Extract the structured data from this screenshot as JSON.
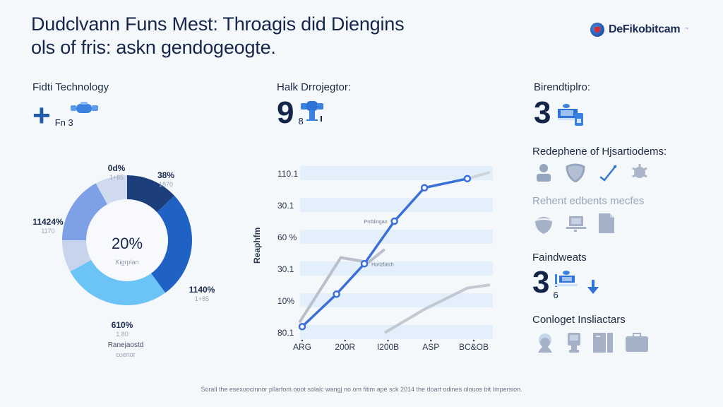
{
  "header": {
    "title_line1": "Dudclvann Funs Mest: Throagis did Diengins",
    "title_line2": "ols of fris: askn gendogeogte."
  },
  "logo": {
    "icon": "globe-icon",
    "text": "DeFikobitcam",
    "tm": "™"
  },
  "kpis": [
    {
      "label": "Fidti Technology",
      "value": "+",
      "value_icon": "plus-icon",
      "sub": "Fn 3",
      "icon": "blue-device-icon"
    },
    {
      "label": "Halk Drrojegtor:",
      "value": "9",
      "sub": "8",
      "icon": "blue-robot-icon"
    },
    {
      "label": "Birendtiplro:",
      "value": "3",
      "icon": "blue-terminal-icon"
    }
  ],
  "right_panel": {
    "section1_label": "Redephene of Hjsartiodems:",
    "section1_icons": [
      "user-icon",
      "shield-icon",
      "checkmark-icon",
      "gear-bug-icon"
    ],
    "section2_label": "Rehent edbents mecfes",
    "section2_icons": [
      "helmet-icon",
      "laptop-icon",
      "document-icon"
    ],
    "section3_label": "Faindweats",
    "section3_value": "3",
    "section3_sub": "6",
    "section3_icons": [
      "blue-terminal-icon",
      "arrow-down-icon"
    ],
    "section4_label": "Conloget Insliactars",
    "section4_icons": [
      "face-icon",
      "kiosk-icon",
      "wardrobe-icon",
      "suitcase-icon"
    ]
  },
  "footer": {
    "text": "Sorall the esexuocinnor pllarfom ooot solalc wangj no om fitim ape sck 2014 the doart odines olouos bit Impersion."
  },
  "chart_data": [
    {
      "type": "pie",
      "title": "",
      "center_value": "20%",
      "center_label": "Kigrplan",
      "caption": "Ranejaostd",
      "caption_sub": "coenor",
      "slices": [
        {
          "label": "38%",
          "sub": "1870",
          "share": 0.13,
          "color": "#1c3f7c"
        },
        {
          "label": "1140%",
          "sub": "1+85",
          "share": 0.27,
          "color": "#1f62c3"
        },
        {
          "label": "610%",
          "sub": "1.80",
          "share": 0.27,
          "color": "#6bc3f6"
        },
        {
          "label": "",
          "sub": "",
          "share": 0.08,
          "color": "#c7d4ec"
        },
        {
          "label": "11424%",
          "sub": "1170",
          "share": 0.17,
          "color": "#7ea0e6"
        },
        {
          "label": "0d%",
          "sub": "1+85",
          "share": 0.08,
          "color": "#d0dbf0"
        }
      ]
    },
    {
      "type": "line",
      "title": "",
      "xlabel": "",
      "ylabel": "Reaphfm",
      "categories": [
        "ARG",
        "200R",
        "I200B",
        "ASP",
        "BC&OB"
      ],
      "y_tick_labels": [
        "110.1",
        "30.1",
        "60 %",
        "30.1",
        "10%",
        "80.1"
      ],
      "ylim": [
        0,
        5
      ],
      "grid": "horizontal bands",
      "annotations": [
        {
          "text": "Prcblingan",
          "at_point": 3
        },
        {
          "text": "Horizfatch",
          "at_point": 2
        }
      ],
      "series": [
        {
          "name": "primary",
          "color": "#3a6fd8",
          "markers": true,
          "points": [
            [
              0,
              0.18
            ],
            [
              0.8,
              1.25
            ],
            [
              1.45,
              2.25
            ],
            [
              2.15,
              3.65
            ],
            [
              2.85,
              4.75
            ],
            [
              3.85,
              5.05
            ]
          ]
        },
        {
          "name": "secondary",
          "color": "#b9c0cb",
          "markers": false,
          "points": [
            [
              -0.05,
              0.35
            ],
            [
              0.9,
              2.45
            ],
            [
              1.55,
              2.3
            ],
            [
              1.9,
              2.7
            ]
          ]
        },
        {
          "name": "tertiary",
          "color": "#c3c9d2",
          "markers": false,
          "points": [
            [
              1.95,
              0.0
            ],
            [
              2.85,
              0.75
            ],
            [
              3.85,
              1.45
            ],
            [
              4.35,
              1.55
            ]
          ]
        },
        {
          "name": "extension",
          "color": "#cfd4db",
          "markers": false,
          "points": [
            [
              3.85,
              5.05
            ],
            [
              4.35,
              5.25
            ]
          ]
        }
      ]
    }
  ]
}
